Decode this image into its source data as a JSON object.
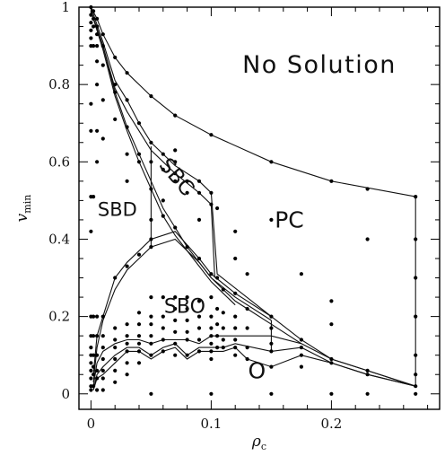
{
  "chart_data": {
    "type": "scatter",
    "title": "",
    "xlabel": "ρ",
    "xlabel_sub": "c",
    "ylabel": "v",
    "ylabel_sub": "min",
    "xlim": [
      -0.01,
      0.29
    ],
    "ylim": [
      -0.04,
      1.0
    ],
    "x_ticks": [
      0,
      0.1,
      0.2
    ],
    "x_tick_labels": [
      "0",
      "0.1",
      "0.2"
    ],
    "y_ticks": [
      0,
      0.2,
      0.4,
      0.6,
      0.8,
      1
    ],
    "y_tick_labels": [
      "0",
      "0.2",
      "0.4",
      "0.6",
      "0.8",
      "1"
    ],
    "grid": false,
    "region_labels": [
      {
        "text": "No Solution",
        "x": 0.19,
        "y": 0.83
      },
      {
        "text": "SBC",
        "x": 0.067,
        "y": 0.55,
        "rotation": 50
      },
      {
        "text": "SBD",
        "x": 0.022,
        "y": 0.46
      },
      {
        "text": "PC",
        "x": 0.165,
        "y": 0.43
      },
      {
        "text": "SBO",
        "x": 0.078,
        "y": 0.21
      },
      {
        "text": "O",
        "x": 0.138,
        "y": 0.04
      }
    ],
    "boundaries": [
      {
        "x": [
          0.0,
          0.005,
          0.01,
          0.02,
          0.03,
          0.05,
          0.07,
          0.1,
          0.15,
          0.2,
          0.27
        ],
        "y": [
          1.0,
          0.97,
          0.93,
          0.87,
          0.83,
          0.77,
          0.72,
          0.67,
          0.6,
          0.55,
          0.51
        ]
      },
      {
        "x": [
          0.27,
          0.27
        ],
        "y": [
          0.51,
          0.02
        ]
      },
      {
        "x": [
          0.0,
          0.01,
          0.02,
          0.03,
          0.04,
          0.05,
          0.07,
          0.09,
          0.1,
          0.105,
          0.15,
          0.175,
          0.2,
          0.23,
          0.27
        ],
        "y": [
          1.0,
          0.91,
          0.81,
          0.76,
          0.7,
          0.65,
          0.59,
          0.55,
          0.52,
          0.31,
          0.2,
          0.14,
          0.09,
          0.06,
          0.02
        ]
      },
      {
        "x": [
          0.0,
          0.01,
          0.02,
          0.03,
          0.04,
          0.05,
          0.07,
          0.09,
          0.1,
          0.103
        ],
        "y": [
          0.99,
          0.9,
          0.79,
          0.73,
          0.68,
          0.63,
          0.57,
          0.52,
          0.49,
          0.3
        ]
      },
      {
        "x": [
          0.0,
          0.01,
          0.02,
          0.03,
          0.04,
          0.05,
          0.06,
          0.07,
          0.08,
          0.09,
          0.1,
          0.11,
          0.12,
          0.13,
          0.15,
          0.175,
          0.2,
          0.23,
          0.27
        ],
        "y": [
          0.99,
          0.9,
          0.78,
          0.69,
          0.62,
          0.55,
          0.48,
          0.43,
          0.38,
          0.34,
          0.3,
          0.27,
          0.24,
          0.22,
          0.18,
          0.13,
          0.09,
          0.06,
          0.02
        ]
      },
      {
        "x": [
          0.0,
          0.01,
          0.02,
          0.03,
          0.04,
          0.05,
          0.06,
          0.07,
          0.08,
          0.09,
          0.1,
          0.11,
          0.12
        ],
        "y": [
          0.99,
          0.89,
          0.77,
          0.68,
          0.6,
          0.53,
          0.46,
          0.41,
          0.37,
          0.33,
          0.29,
          0.26,
          0.23
        ]
      },
      {
        "x": [
          0.05,
          0.05
        ],
        "y": [
          0.64,
          0.38
        ]
      },
      {
        "x": [
          0.002,
          0.005,
          0.01,
          0.02,
          0.03,
          0.05,
          0.07,
          0.09,
          0.1,
          0.12,
          0.15
        ],
        "y": [
          0.05,
          0.15,
          0.2,
          0.3,
          0.34,
          0.4,
          0.42,
          0.35,
          0.31,
          0.26,
          0.2
        ]
      },
      {
        "x": [
          0.002,
          0.005,
          0.01,
          0.02,
          0.03,
          0.05,
          0.07,
          0.09,
          0.1,
          0.12,
          0.15
        ],
        "y": [
          0.03,
          0.12,
          0.19,
          0.27,
          0.32,
          0.38,
          0.4,
          0.34,
          0.3,
          0.25,
          0.19
        ]
      },
      {
        "x": [
          0.002,
          0.005,
          0.01,
          0.02,
          0.03,
          0.04,
          0.05,
          0.06,
          0.07,
          0.08,
          0.09,
          0.1,
          0.11,
          0.12,
          0.15,
          0.175
        ],
        "y": [
          0.02,
          0.08,
          0.11,
          0.13,
          0.14,
          0.14,
          0.13,
          0.14,
          0.14,
          0.14,
          0.13,
          0.15,
          0.15,
          0.15,
          0.15,
          0.13
        ]
      },
      {
        "x": [
          0.15,
          0.15
        ],
        "y": [
          0.19,
          0.11
        ]
      },
      {
        "x": [
          0.002,
          0.005,
          0.01,
          0.02,
          0.03,
          0.04,
          0.05,
          0.06,
          0.07,
          0.08,
          0.09,
          0.1,
          0.11,
          0.12,
          0.15,
          0.175,
          0.2,
          0.23,
          0.27
        ],
        "y": [
          0.01,
          0.05,
          0.07,
          0.1,
          0.12,
          0.12,
          0.1,
          0.12,
          0.13,
          0.1,
          0.12,
          0.12,
          0.12,
          0.13,
          0.11,
          0.12,
          0.08,
          0.05,
          0.02
        ]
      },
      {
        "x": [
          0.002,
          0.005,
          0.01,
          0.02,
          0.03,
          0.04,
          0.05,
          0.06,
          0.07,
          0.08,
          0.09,
          0.1,
          0.11,
          0.12,
          0.13,
          0.15,
          0.175,
          0.2,
          0.23,
          0.27
        ],
        "y": [
          0.01,
          0.04,
          0.05,
          0.08,
          0.11,
          0.11,
          0.09,
          0.11,
          0.12,
          0.09,
          0.11,
          0.11,
          0.11,
          0.12,
          0.09,
          0.07,
          0.1,
          0.08,
          0.05,
          0.02
        ]
      }
    ],
    "points": [
      [
        0,
        1
      ],
      [
        0,
        0.98
      ],
      [
        0,
        0.96
      ],
      [
        0,
        0.94
      ],
      [
        0,
        0.92
      ],
      [
        0,
        0.9
      ],
      [
        0,
        0.75
      ],
      [
        0,
        0.68
      ],
      [
        0,
        0.51
      ],
      [
        0,
        0.42
      ],
      [
        0,
        0.2
      ],
      [
        0,
        0.15
      ],
      [
        0,
        0.12
      ],
      [
        0,
        0.1
      ],
      [
        0,
        0.08
      ],
      [
        0,
        0.06
      ],
      [
        0,
        0.04
      ],
      [
        0,
        0.02
      ],
      [
        0,
        0.01
      ],
      [
        0.002,
        0.99
      ],
      [
        0.002,
        0.97
      ],
      [
        0.002,
        0.95
      ],
      [
        0.002,
        0.9
      ],
      [
        0.002,
        0.51
      ],
      [
        0.002,
        0.2
      ],
      [
        0.002,
        0.15
      ],
      [
        0.002,
        0.1
      ],
      [
        0.002,
        0.07
      ],
      [
        0.002,
        0.05
      ],
      [
        0.002,
        0.02
      ],
      [
        0.005,
        0.97
      ],
      [
        0.005,
        0.95
      ],
      [
        0.005,
        0.93
      ],
      [
        0.005,
        0.9
      ],
      [
        0.005,
        0.86
      ],
      [
        0.005,
        0.8
      ],
      [
        0.005,
        0.68
      ],
      [
        0.005,
        0.6
      ],
      [
        0.005,
        0.2
      ],
      [
        0.005,
        0.15
      ],
      [
        0.005,
        0.1
      ],
      [
        0.005,
        0.06
      ],
      [
        0.005,
        0.04
      ],
      [
        0.005,
        0.01
      ],
      [
        0.01,
        0.93
      ],
      [
        0.01,
        0.9
      ],
      [
        0.01,
        0.85
      ],
      [
        0.01,
        0.76
      ],
      [
        0.01,
        0.66
      ],
      [
        0.01,
        0.2
      ],
      [
        0.01,
        0.15
      ],
      [
        0.01,
        0.12
      ],
      [
        0.01,
        0.09
      ],
      [
        0.01,
        0.06
      ],
      [
        0.01,
        0.04
      ],
      [
        0.01,
        0.01
      ],
      [
        0.02,
        0.87
      ],
      [
        0.02,
        0.8
      ],
      [
        0.02,
        0.78
      ],
      [
        0.02,
        0.71
      ],
      [
        0.02,
        0.3
      ],
      [
        0.02,
        0.17
      ],
      [
        0.02,
        0.14
      ],
      [
        0.02,
        0.12
      ],
      [
        0.02,
        0.09
      ],
      [
        0.02,
        0.06
      ],
      [
        0.02,
        0.03
      ],
      [
        0.03,
        0.83
      ],
      [
        0.03,
        0.76
      ],
      [
        0.03,
        0.69
      ],
      [
        0.03,
        0.62
      ],
      [
        0.03,
        0.55
      ],
      [
        0.03,
        0.33
      ],
      [
        0.03,
        0.18
      ],
      [
        0.03,
        0.15
      ],
      [
        0.03,
        0.13
      ],
      [
        0.03,
        0.11
      ],
      [
        0.03,
        0.08
      ],
      [
        0.03,
        0.05
      ],
      [
        0.04,
        0.7
      ],
      [
        0.04,
        0.62
      ],
      [
        0.04,
        0.6
      ],
      [
        0.04,
        0.36
      ],
      [
        0.04,
        0.21
      ],
      [
        0.04,
        0.18
      ],
      [
        0.04,
        0.15
      ],
      [
        0.04,
        0.13
      ],
      [
        0.04,
        0.11
      ],
      [
        0.04,
        0.08
      ],
      [
        0.05,
        0.77
      ],
      [
        0.05,
        0.65
      ],
      [
        0.05,
        0.6
      ],
      [
        0.05,
        0.53
      ],
      [
        0.05,
        0.45
      ],
      [
        0.05,
        0.4
      ],
      [
        0.05,
        0.38
      ],
      [
        0.05,
        0.25
      ],
      [
        0.05,
        0.2
      ],
      [
        0.05,
        0.18
      ],
      [
        0.05,
        0.15
      ],
      [
        0.05,
        0.13
      ],
      [
        0.05,
        0.1
      ],
      [
        0.05,
        0.0
      ],
      [
        0.06,
        0.62
      ],
      [
        0.06,
        0.58
      ],
      [
        0.06,
        0.5
      ],
      [
        0.06,
        0.46
      ],
      [
        0.06,
        0.25
      ],
      [
        0.06,
        0.2
      ],
      [
        0.06,
        0.17
      ],
      [
        0.06,
        0.14
      ],
      [
        0.06,
        0.11
      ],
      [
        0.07,
        0.72
      ],
      [
        0.07,
        0.63
      ],
      [
        0.07,
        0.6
      ],
      [
        0.07,
        0.57
      ],
      [
        0.07,
        0.55
      ],
      [
        0.07,
        0.43
      ],
      [
        0.07,
        0.25
      ],
      [
        0.07,
        0.22
      ],
      [
        0.07,
        0.19
      ],
      [
        0.07,
        0.16
      ],
      [
        0.07,
        0.13
      ],
      [
        0.07,
        0.1
      ],
      [
        0.08,
        0.55
      ],
      [
        0.08,
        0.52
      ],
      [
        0.08,
        0.38
      ],
      [
        0.08,
        0.25
      ],
      [
        0.08,
        0.22
      ],
      [
        0.08,
        0.19
      ],
      [
        0.08,
        0.16
      ],
      [
        0.08,
        0.14
      ],
      [
        0.08,
        0.1
      ],
      [
        0.09,
        0.55
      ],
      [
        0.09,
        0.52
      ],
      [
        0.09,
        0.45
      ],
      [
        0.09,
        0.35
      ],
      [
        0.09,
        0.24
      ],
      [
        0.09,
        0.2
      ],
      [
        0.09,
        0.17
      ],
      [
        0.09,
        0.14
      ],
      [
        0.09,
        0.11
      ],
      [
        0.1,
        0.67
      ],
      [
        0.1,
        0.52
      ],
      [
        0.1,
        0.49
      ],
      [
        0.1,
        0.31
      ],
      [
        0.1,
        0.25
      ],
      [
        0.1,
        0.2
      ],
      [
        0.1,
        0.17
      ],
      [
        0.1,
        0.15
      ],
      [
        0.1,
        0.13
      ],
      [
        0.1,
        0.11
      ],
      [
        0.1,
        0.09
      ],
      [
        0.1,
        0.0
      ],
      [
        0.105,
        0.48
      ],
      [
        0.105,
        0.3
      ],
      [
        0.105,
        0.22
      ],
      [
        0.105,
        0.18
      ],
      [
        0.105,
        0.15
      ],
      [
        0.105,
        0.12
      ],
      [
        0.11,
        0.27
      ],
      [
        0.11,
        0.21
      ],
      [
        0.11,
        0.17
      ],
      [
        0.11,
        0.14
      ],
      [
        0.11,
        0.12
      ],
      [
        0.12,
        0.42
      ],
      [
        0.12,
        0.35
      ],
      [
        0.12,
        0.26
      ],
      [
        0.12,
        0.2
      ],
      [
        0.12,
        0.17
      ],
      [
        0.12,
        0.14
      ],
      [
        0.12,
        0.12
      ],
      [
        0.12,
        0.1
      ],
      [
        0.13,
        0.31
      ],
      [
        0.13,
        0.22
      ],
      [
        0.13,
        0.17
      ],
      [
        0.13,
        0.12
      ],
      [
        0.13,
        0.09
      ],
      [
        0.15,
        0.6
      ],
      [
        0.15,
        0.45
      ],
      [
        0.15,
        0.2
      ],
      [
        0.15,
        0.17
      ],
      [
        0.15,
        0.13
      ],
      [
        0.15,
        0.11
      ],
      [
        0.15,
        0.07
      ],
      [
        0.15,
        0.0
      ],
      [
        0.175,
        0.31
      ],
      [
        0.175,
        0.14
      ],
      [
        0.175,
        0.12
      ],
      [
        0.175,
        0.1
      ],
      [
        0.175,
        0.07
      ],
      [
        0.2,
        0.55
      ],
      [
        0.2,
        0.24
      ],
      [
        0.2,
        0.18
      ],
      [
        0.2,
        0.09
      ],
      [
        0.2,
        0.08
      ],
      [
        0.2,
        0.0
      ],
      [
        0.23,
        0.53
      ],
      [
        0.23,
        0.4
      ],
      [
        0.23,
        0.06
      ],
      [
        0.23,
        0.05
      ],
      [
        0.23,
        0.0
      ],
      [
        0.27,
        0.51
      ],
      [
        0.27,
        0.4
      ],
      [
        0.27,
        0.3
      ],
      [
        0.27,
        0.2
      ],
      [
        0.27,
        0.1
      ],
      [
        0.27,
        0.05
      ],
      [
        0.27,
        0.02
      ],
      [
        0.27,
        0.0
      ]
    ]
  }
}
